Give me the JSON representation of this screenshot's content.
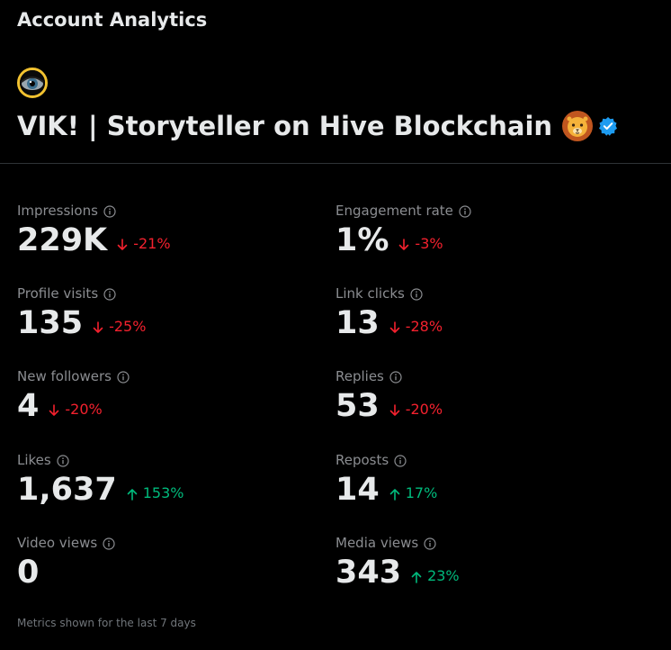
{
  "header": {
    "title": "Account Analytics"
  },
  "profile": {
    "name": "VIK! | Storyteller on Hive Blockchain",
    "emoji_icon": "lion-face-icon",
    "verified_icon": "verified-badge-icon",
    "avatar_icon": "eye-avatar-icon"
  },
  "metrics": {
    "impressions": {
      "label": "Impressions",
      "value": "229K",
      "change": "-21%",
      "direction": "down"
    },
    "engagement_rate": {
      "label": "Engagement rate",
      "value": "1%",
      "change": "-3%",
      "direction": "down"
    },
    "profile_visits": {
      "label": "Profile visits",
      "value": "135",
      "change": "-25%",
      "direction": "down"
    },
    "link_clicks": {
      "label": "Link clicks",
      "value": "13",
      "change": "-28%",
      "direction": "down"
    },
    "new_followers": {
      "label": "New followers",
      "value": "4",
      "change": "-20%",
      "direction": "down"
    },
    "replies": {
      "label": "Replies",
      "value": "53",
      "change": "-20%",
      "direction": "down"
    },
    "likes": {
      "label": "Likes",
      "value": "1,637",
      "change": "153%",
      "direction": "up"
    },
    "reposts": {
      "label": "Reposts",
      "value": "14",
      "change": "17%",
      "direction": "up"
    },
    "video_views": {
      "label": "Video views",
      "value": "0",
      "change": "",
      "direction": "none"
    },
    "media_views": {
      "label": "Media views",
      "value": "343",
      "change": "23%",
      "direction": "up"
    }
  },
  "footer": {
    "note": "Metrics shown for the last 7 days"
  },
  "colors": {
    "background": "#000000",
    "text_primary": "#e7e9ea",
    "text_secondary": "#8b8d91",
    "negative": "#f4212e",
    "positive": "#00ba7c",
    "verified": "#1d9bf0",
    "avatar_ring": "#f2c230"
  }
}
